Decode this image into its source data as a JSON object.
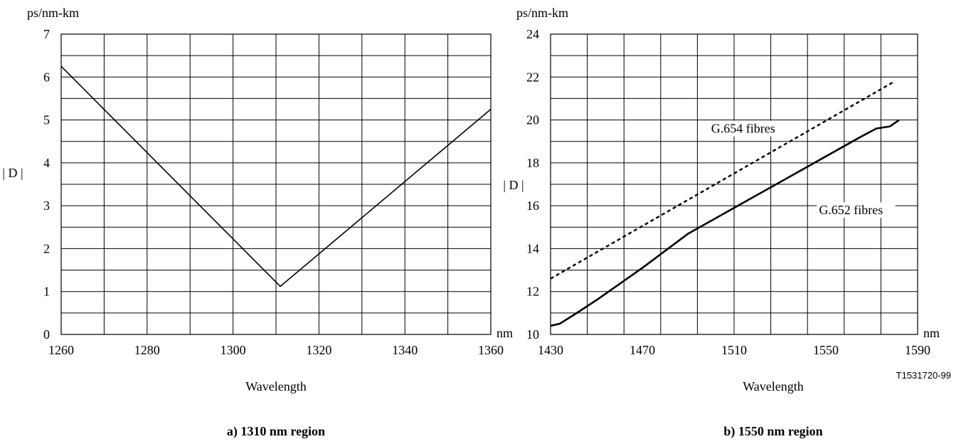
{
  "figure_id": "T1531720-99",
  "chart_data": [
    {
      "type": "line",
      "panel_label": "a) 1310 nm region",
      "xlabel": "Wavelength",
      "x_unit": "nm",
      "y_unit": "ps/nm-km",
      "ylabel": "| D |",
      "xlim": [
        1260,
        1360
      ],
      "ylim": [
        0,
        7
      ],
      "x_ticks": [
        1260,
        1280,
        1300,
        1320,
        1340,
        1360
      ],
      "y_ticks": [
        0,
        1,
        2,
        3,
        4,
        5,
        6,
        7
      ],
      "x_gridlines": [
        1260,
        1270,
        1280,
        1290,
        1300,
        1310,
        1320,
        1330,
        1340,
        1350,
        1360
      ],
      "y_gridlines": [
        0,
        0.5,
        1,
        1.5,
        2,
        2.5,
        3,
        3.5,
        4,
        4.5,
        5,
        5.5,
        6,
        6.5,
        7
      ],
      "series": [
        {
          "x": [
            1260,
            1311,
            1360
          ],
          "y": [
            6.25,
            1.12,
            5.25
          ],
          "style": "solid"
        }
      ]
    },
    {
      "type": "line",
      "panel_label": "b) 1550 nm region",
      "xlabel": "Wavelength",
      "x_unit": "nm",
      "y_unit": "ps/nm-km",
      "ylabel": "| D |",
      "xlim": [
        1430,
        1590
      ],
      "ylim": [
        10,
        24
      ],
      "x_ticks": [
        1430,
        1470,
        1510,
        1550,
        1590
      ],
      "y_ticks": [
        10,
        12,
        14,
        16,
        18,
        20,
        22,
        24
      ],
      "x_gridlines": [
        1430,
        1446,
        1462,
        1478,
        1494,
        1510,
        1526,
        1542,
        1558,
        1574,
        1590
      ],
      "y_gridlines": [
        10,
        11,
        12,
        13,
        14,
        15,
        16,
        17,
        18,
        19,
        20,
        21,
        22,
        23,
        24
      ],
      "series": [
        {
          "name": "G.654 fibres",
          "style": "dashed",
          "x": [
            1430,
            1580
          ],
          "y": [
            12.6,
            21.8
          ],
          "label_at": [
            1500,
            19.4
          ]
        },
        {
          "name": "G.652 fibres",
          "style": "solid",
          "x": [
            1430,
            1434,
            1440,
            1450,
            1470,
            1490,
            1510,
            1530,
            1550,
            1565,
            1572,
            1578,
            1582
          ],
          "y": [
            10.4,
            10.5,
            10.9,
            11.6,
            13.1,
            14.7,
            15.9,
            17.1,
            18.3,
            19.2,
            19.6,
            19.7,
            20.0
          ],
          "label_at": [
            1547,
            15.6
          ]
        }
      ]
    }
  ]
}
